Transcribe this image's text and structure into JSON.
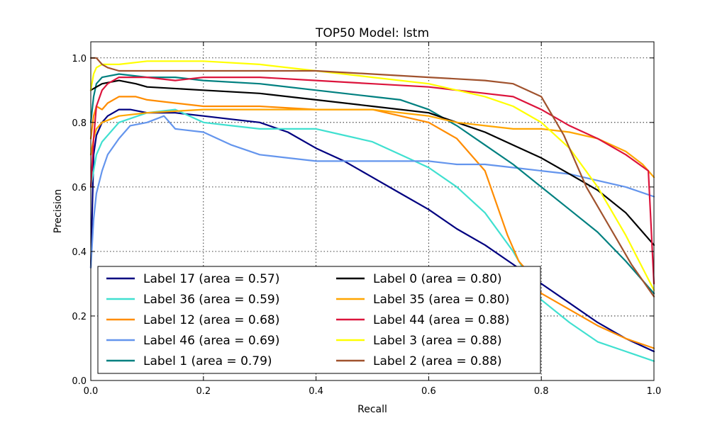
{
  "chart_data": {
    "type": "line",
    "title": "TOP50 Model: lstm",
    "xlabel": "Recall",
    "ylabel": "Precision",
    "xlim": [
      0.0,
      1.0
    ],
    "ylim": [
      0.0,
      1.05
    ],
    "xticks": [
      0.0,
      0.2,
      0.4,
      0.6,
      0.8,
      1.0
    ],
    "yticks": [
      0.0,
      0.2,
      0.4,
      0.6,
      0.8,
      1.0
    ],
    "xtick_labels": [
      "0.0",
      "0.2",
      "0.4",
      "0.6",
      "0.8",
      "1.0"
    ],
    "ytick_labels": [
      "0.0",
      "0.2",
      "0.4",
      "0.6",
      "0.8",
      "1.0"
    ],
    "grid": true,
    "legend_position": "lower-left",
    "series": [
      {
        "name": "Label 17 (area = 0.57)",
        "color": "#000080",
        "x": [
          0.0,
          0.005,
          0.01,
          0.02,
          0.03,
          0.05,
          0.07,
          0.1,
          0.15,
          0.2,
          0.25,
          0.3,
          0.35,
          0.4,
          0.45,
          0.5,
          0.55,
          0.6,
          0.65,
          0.7,
          0.75,
          0.8,
          0.85,
          0.9,
          0.95,
          1.0
        ],
        "y": [
          0.35,
          0.7,
          0.76,
          0.8,
          0.82,
          0.84,
          0.84,
          0.83,
          0.83,
          0.82,
          0.81,
          0.8,
          0.77,
          0.72,
          0.68,
          0.63,
          0.58,
          0.53,
          0.47,
          0.42,
          0.36,
          0.3,
          0.24,
          0.18,
          0.13,
          0.09
        ]
      },
      {
        "name": "Label 36 (area = 0.59)",
        "color": "#40E0D0",
        "x": [
          0.0,
          0.01,
          0.02,
          0.05,
          0.1,
          0.15,
          0.2,
          0.25,
          0.3,
          0.35,
          0.4,
          0.45,
          0.5,
          0.55,
          0.6,
          0.65,
          0.7,
          0.75,
          0.8,
          0.85,
          0.9,
          0.95,
          1.0
        ],
        "y": [
          0.6,
          0.7,
          0.74,
          0.8,
          0.83,
          0.84,
          0.8,
          0.79,
          0.78,
          0.78,
          0.78,
          0.76,
          0.74,
          0.7,
          0.66,
          0.6,
          0.52,
          0.4,
          0.25,
          0.18,
          0.12,
          0.09,
          0.06
        ]
      },
      {
        "name": "Label 12 (area = 0.68)",
        "color": "#FF8C00",
        "x": [
          0.0,
          0.005,
          0.01,
          0.02,
          0.03,
          0.05,
          0.08,
          0.1,
          0.15,
          0.2,
          0.3,
          0.4,
          0.5,
          0.6,
          0.65,
          0.7,
          0.72,
          0.74,
          0.76,
          0.78,
          0.8,
          0.85,
          0.9,
          0.95,
          1.0
        ],
        "y": [
          0.75,
          0.82,
          0.85,
          0.84,
          0.86,
          0.88,
          0.88,
          0.87,
          0.86,
          0.85,
          0.85,
          0.84,
          0.84,
          0.8,
          0.75,
          0.65,
          0.55,
          0.45,
          0.37,
          0.33,
          0.27,
          0.22,
          0.17,
          0.13,
          0.1
        ]
      },
      {
        "name": "Label 46 (area = 0.69)",
        "color": "#6495ED",
        "x": [
          0.0,
          0.005,
          0.01,
          0.02,
          0.03,
          0.05,
          0.07,
          0.1,
          0.13,
          0.15,
          0.2,
          0.25,
          0.3,
          0.35,
          0.4,
          0.45,
          0.5,
          0.55,
          0.6,
          0.65,
          0.7,
          0.75,
          0.8,
          0.85,
          0.9,
          0.95,
          1.0
        ],
        "y": [
          0.35,
          0.5,
          0.58,
          0.65,
          0.7,
          0.75,
          0.79,
          0.8,
          0.82,
          0.78,
          0.77,
          0.73,
          0.7,
          0.69,
          0.68,
          0.68,
          0.68,
          0.68,
          0.68,
          0.67,
          0.67,
          0.66,
          0.65,
          0.64,
          0.62,
          0.6,
          0.57
        ]
      },
      {
        "name": "Label 1 (area = 0.79)",
        "color": "#008080",
        "x": [
          0.0,
          0.005,
          0.01,
          0.02,
          0.05,
          0.1,
          0.15,
          0.2,
          0.3,
          0.4,
          0.5,
          0.55,
          0.6,
          0.65,
          0.7,
          0.75,
          0.8,
          0.85,
          0.9,
          0.95,
          1.0
        ],
        "y": [
          0.8,
          0.88,
          0.92,
          0.94,
          0.95,
          0.94,
          0.94,
          0.93,
          0.92,
          0.9,
          0.88,
          0.87,
          0.84,
          0.79,
          0.73,
          0.67,
          0.6,
          0.53,
          0.46,
          0.37,
          0.27
        ]
      },
      {
        "name": "Label 0 (area = 0.80)",
        "color": "#000000",
        "x": [
          0.0,
          0.02,
          0.05,
          0.08,
          0.1,
          0.2,
          0.3,
          0.4,
          0.5,
          0.6,
          0.65,
          0.7,
          0.75,
          0.8,
          0.85,
          0.9,
          0.95,
          1.0
        ],
        "y": [
          0.9,
          0.92,
          0.93,
          0.92,
          0.91,
          0.9,
          0.89,
          0.87,
          0.85,
          0.83,
          0.8,
          0.77,
          0.73,
          0.69,
          0.64,
          0.59,
          0.52,
          0.42
        ]
      },
      {
        "name": "Label 35 (area = 0.80)",
        "color": "#FFA500",
        "x": [
          0.0,
          0.005,
          0.01,
          0.02,
          0.05,
          0.1,
          0.2,
          0.3,
          0.4,
          0.5,
          0.6,
          0.65,
          0.7,
          0.75,
          0.8,
          0.85,
          0.9,
          0.95,
          0.98,
          1.0
        ],
        "y": [
          0.7,
          0.75,
          0.78,
          0.8,
          0.82,
          0.83,
          0.84,
          0.84,
          0.84,
          0.84,
          0.82,
          0.8,
          0.79,
          0.78,
          0.78,
          0.77,
          0.75,
          0.71,
          0.67,
          0.63
        ]
      },
      {
        "name": "Label 44 (area = 0.88)",
        "color": "#DC143C",
        "x": [
          0.0,
          0.005,
          0.01,
          0.02,
          0.03,
          0.05,
          0.1,
          0.15,
          0.2,
          0.3,
          0.4,
          0.5,
          0.6,
          0.65,
          0.7,
          0.75,
          0.8,
          0.85,
          0.9,
          0.95,
          0.99,
          1.0
        ],
        "y": [
          0.6,
          0.75,
          0.85,
          0.9,
          0.92,
          0.94,
          0.94,
          0.93,
          0.94,
          0.94,
          0.93,
          0.92,
          0.91,
          0.9,
          0.89,
          0.88,
          0.84,
          0.79,
          0.75,
          0.7,
          0.65,
          0.3
        ]
      },
      {
        "name": "Label 3 (area = 0.88)",
        "color": "#FFFF00",
        "x": [
          0.0,
          0.005,
          0.01,
          0.02,
          0.05,
          0.1,
          0.2,
          0.3,
          0.4,
          0.5,
          0.6,
          0.7,
          0.75,
          0.8,
          0.85,
          0.9,
          0.95,
          1.0
        ],
        "y": [
          0.9,
          0.95,
          0.97,
          0.98,
          0.98,
          0.99,
          0.99,
          0.98,
          0.96,
          0.94,
          0.92,
          0.88,
          0.85,
          0.8,
          0.72,
          0.6,
          0.45,
          0.28
        ]
      },
      {
        "name": "Label 2 (area = 0.88)",
        "color": "#A0522D",
        "x": [
          0.0,
          0.01,
          0.02,
          0.03,
          0.05,
          0.1,
          0.2,
          0.3,
          0.4,
          0.5,
          0.6,
          0.7,
          0.75,
          0.8,
          0.82,
          0.84,
          0.86,
          0.88,
          0.9,
          0.92,
          0.94,
          0.96,
          1.0
        ],
        "y": [
          1.0,
          1.0,
          0.98,
          0.97,
          0.96,
          0.96,
          0.96,
          0.96,
          0.96,
          0.95,
          0.94,
          0.93,
          0.92,
          0.88,
          0.82,
          0.76,
          0.68,
          0.6,
          0.54,
          0.48,
          0.42,
          0.36,
          0.26
        ]
      }
    ]
  }
}
